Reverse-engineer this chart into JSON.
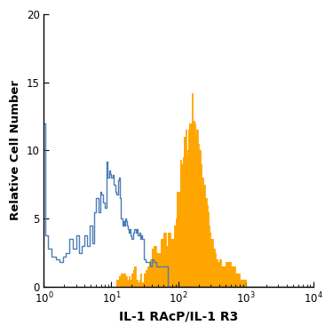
{
  "xlabel": "IL-1 RAcP/IL-1 R3",
  "ylabel": "Relative Cell Number",
  "xlim": [
    1,
    10000
  ],
  "ylim": [
    0,
    20
  ],
  "yticks": [
    0,
    5,
    10,
    15,
    20
  ],
  "blue_color": "#4A7CB5",
  "orange_color": "#FFA500",
  "blue_data": {
    "x": [
      1.0,
      1.05,
      1.15,
      1.3,
      1.5,
      1.7,
      1.9,
      2.1,
      2.4,
      2.7,
      3.0,
      3.3,
      3.6,
      4.0,
      4.4,
      4.8,
      5.2,
      5.6,
      6.0,
      6.4,
      6.8,
      7.2,
      7.6,
      8.0,
      8.4,
      8.8,
      9.2,
      9.6,
      10.0,
      10.5,
      11.0,
      11.5,
      12.0,
      12.5,
      13.0,
      13.5,
      14.0,
      14.5,
      15.0,
      15.5,
      16.0,
      16.5,
      17.0,
      17.5,
      18.0,
      18.5,
      19.0,
      19.5,
      20.0,
      21.0,
      22.0,
      23.0,
      24.0,
      25.0,
      26.0,
      27.0,
      28.0,
      29.0,
      30.0,
      32.0,
      34.0,
      36.0,
      38.0,
      40.0,
      43.0,
      46.0,
      50.0,
      55.0,
      60.0,
      70.0,
      80.0,
      100.0,
      150.0,
      200.0,
      300.0,
      500.0,
      1000.0,
      10000.0
    ],
    "y": [
      12.0,
      3.8,
      2.8,
      2.2,
      2.0,
      1.8,
      2.2,
      2.5,
      3.5,
      2.8,
      3.8,
      2.5,
      3.0,
      3.8,
      3.0,
      4.5,
      3.2,
      5.5,
      6.5,
      5.5,
      7.0,
      6.8,
      6.2,
      5.8,
      9.2,
      8.0,
      8.5,
      8.3,
      8.0,
      8.2,
      7.5,
      7.0,
      6.8,
      7.8,
      8.0,
      6.5,
      5.0,
      4.5,
      4.8,
      4.5,
      5.0,
      4.8,
      4.5,
      4.2,
      4.0,
      4.2,
      4.2,
      3.8,
      3.5,
      4.0,
      4.2,
      4.0,
      4.2,
      3.8,
      4.0,
      3.5,
      3.8,
      3.5,
      2.0,
      1.8,
      1.8,
      1.8,
      1.5,
      2.0,
      1.8,
      1.5,
      1.5,
      1.5,
      1.5,
      0.0,
      0.0,
      0.0,
      0.0,
      0.0,
      0.0,
      0.0,
      0.0,
      0.0
    ]
  },
  "orange_data": {
    "x": [
      1.0,
      5.0,
      7.0,
      8.0,
      9.0,
      10.0,
      11.0,
      12.0,
      13.0,
      14.0,
      15.0,
      16.0,
      17.0,
      18.0,
      19.0,
      20.0,
      21.0,
      22.0,
      23.0,
      24.0,
      25.0,
      26.0,
      27.0,
      28.0,
      30.0,
      32.0,
      34.0,
      36.0,
      38.0,
      40.0,
      43.0,
      46.0,
      50.0,
      55.0,
      60.0,
      65.0,
      70.0,
      75.0,
      80.0,
      85.0,
      90.0,
      95.0,
      100.0,
      105.0,
      110.0,
      115.0,
      120.0,
      125.0,
      130.0,
      135.0,
      140.0,
      145.0,
      150.0,
      155.0,
      160.0,
      165.0,
      170.0,
      175.0,
      180.0,
      185.0,
      190.0,
      195.0,
      200.0,
      210.0,
      220.0,
      230.0,
      240.0,
      250.0,
      260.0,
      270.0,
      280.0,
      290.0,
      300.0,
      320.0,
      340.0,
      360.0,
      380.0,
      400.0,
      430.0,
      460.0,
      500.0,
      600.0,
      700.0,
      800.0,
      1000.0,
      10000.0
    ],
    "y": [
      0.0,
      0.0,
      0.0,
      0.0,
      0.0,
      0.0,
      0.0,
      0.5,
      0.8,
      1.0,
      1.0,
      0.8,
      0.5,
      0.8,
      0.5,
      1.0,
      1.2,
      1.5,
      0.5,
      0.5,
      0.3,
      0.5,
      1.0,
      0.3,
      1.0,
      1.2,
      1.5,
      1.8,
      2.0,
      2.8,
      3.0,
      2.5,
      2.5,
      3.5,
      4.0,
      3.0,
      4.0,
      3.5,
      3.5,
      4.5,
      5.0,
      7.0,
      7.0,
      9.3,
      9.0,
      9.5,
      11.0,
      11.5,
      9.5,
      10.0,
      11.5,
      12.0,
      12.0,
      14.2,
      12.0,
      12.2,
      12.0,
      11.2,
      11.5,
      11.0,
      11.5,
      10.5,
      10.0,
      9.0,
      8.0,
      7.5,
      7.5,
      6.5,
      6.0,
      5.5,
      4.5,
      4.0,
      3.5,
      2.8,
      2.5,
      2.0,
      1.8,
      2.0,
      1.5,
      1.5,
      1.8,
      1.5,
      1.0,
      0.5,
      0.0,
      0.0
    ]
  }
}
